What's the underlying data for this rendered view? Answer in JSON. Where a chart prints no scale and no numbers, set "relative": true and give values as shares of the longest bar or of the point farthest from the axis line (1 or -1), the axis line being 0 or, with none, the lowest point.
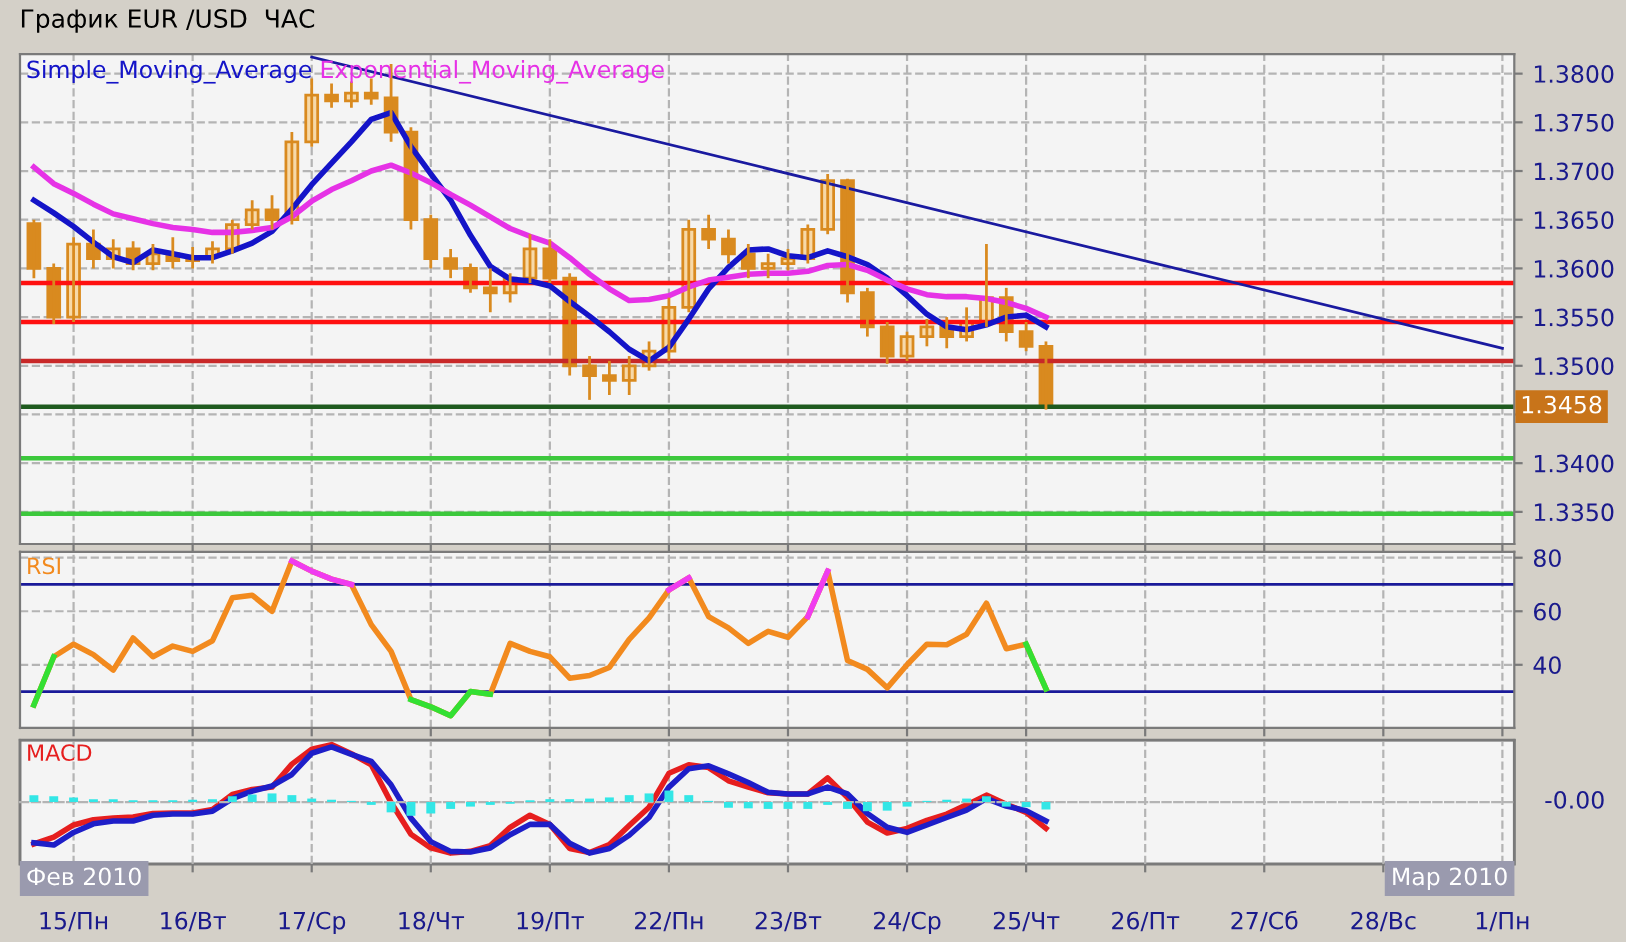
{
  "chart_data": [
    {
      "type": "candlestick",
      "title": "График EUR /USD  ЧАС",
      "color": "#d98a1f",
      "categories": [
        null,
        null,
        "15/Пн",
        null,
        null,
        null,
        null,
        null,
        "16/Вт",
        null,
        null,
        null,
        null,
        null,
        "17/Ср",
        null,
        null,
        null,
        null,
        null,
        "18/Чт",
        null,
        null,
        null,
        null,
        null,
        "19/Пт",
        null,
        null,
        null,
        null,
        null,
        "22/Пн",
        null,
        null,
        null,
        null,
        null,
        "23/Вт",
        null,
        null,
        null,
        null,
        null,
        "24/Ср",
        null,
        null,
        null,
        null,
        null,
        "25/Чт",
        null,
        null,
        null,
        null,
        null,
        "26/Пт",
        null,
        null,
        null,
        null,
        null,
        "27/Сб",
        null,
        null,
        null,
        null,
        null,
        "28/Вс",
        null,
        null,
        null,
        null,
        null,
        "1/Пн"
      ],
      "ohlc": [
        [
          1.3646,
          1.365,
          1.359,
          1.36
        ],
        [
          1.36,
          1.3605,
          1.3543,
          1.355
        ],
        [
          1.355,
          1.3632,
          1.3545,
          1.3625
        ],
        [
          1.3625,
          1.364,
          1.36,
          1.361
        ],
        [
          1.361,
          1.363,
          1.36,
          1.362
        ],
        [
          1.362,
          1.3628,
          1.3598,
          1.3605
        ],
        [
          1.3605,
          1.3625,
          1.3598,
          1.3615
        ],
        [
          1.3615,
          1.3632,
          1.36,
          1.3608
        ],
        [
          1.3608,
          1.3622,
          1.36,
          1.3612
        ],
        [
          1.3612,
          1.3628,
          1.3605,
          1.362
        ],
        [
          1.362,
          1.365,
          1.3615,
          1.3645
        ],
        [
          1.3645,
          1.367,
          1.364,
          1.366
        ],
        [
          1.366,
          1.3675,
          1.364,
          1.365
        ],
        [
          1.365,
          1.374,
          1.3645,
          1.373
        ],
        [
          1.373,
          1.3795,
          1.3725,
          1.3778
        ],
        [
          1.3778,
          1.379,
          1.3765,
          1.3772
        ],
        [
          1.3772,
          1.3792,
          1.3765,
          1.378
        ],
        [
          1.378,
          1.3795,
          1.3768,
          1.3775
        ],
        [
          1.3775,
          1.381,
          1.373,
          1.374
        ],
        [
          1.374,
          1.3745,
          1.364,
          1.365
        ],
        [
          1.365,
          1.3655,
          1.36,
          1.361
        ],
        [
          1.361,
          1.362,
          1.359,
          1.36
        ],
        [
          1.36,
          1.3605,
          1.3575,
          1.358
        ],
        [
          1.358,
          1.36,
          1.3555,
          1.3575
        ],
        [
          1.3575,
          1.3595,
          1.3565,
          1.359
        ],
        [
          1.359,
          1.3635,
          1.3585,
          1.362
        ],
        [
          1.362,
          1.363,
          1.3585,
          1.359
        ],
        [
          1.359,
          1.3595,
          1.349,
          1.35
        ],
        [
          1.35,
          1.351,
          1.3465,
          1.349
        ],
        [
          1.349,
          1.3505,
          1.347,
          1.3485
        ],
        [
          1.3485,
          1.351,
          1.347,
          1.35
        ],
        [
          1.35,
          1.3525,
          1.3495,
          1.3515
        ],
        [
          1.3515,
          1.357,
          1.3505,
          1.356
        ],
        [
          1.356,
          1.365,
          1.3555,
          1.364
        ],
        [
          1.364,
          1.3655,
          1.362,
          1.363
        ],
        [
          1.363,
          1.364,
          1.3605,
          1.3615
        ],
        [
          1.3615,
          1.3625,
          1.359,
          1.36
        ],
        [
          1.36,
          1.3615,
          1.359,
          1.3605
        ],
        [
          1.3605,
          1.362,
          1.3598,
          1.361
        ],
        [
          1.361,
          1.3645,
          1.3605,
          1.364
        ],
        [
          1.364,
          1.3697,
          1.3635,
          1.369
        ],
        [
          1.369,
          1.3692,
          1.3565,
          1.3575
        ],
        [
          1.3575,
          1.358,
          1.353,
          1.354
        ],
        [
          1.354,
          1.3545,
          1.3502,
          1.351
        ],
        [
          1.351,
          1.3535,
          1.3505,
          1.353
        ],
        [
          1.353,
          1.3548,
          1.352,
          1.354
        ],
        [
          1.354,
          1.355,
          1.3518,
          1.353
        ],
        [
          1.353,
          1.356,
          1.3525,
          1.3545
        ],
        [
          1.3545,
          1.3625,
          1.354,
          1.357
        ],
        [
          1.357,
          1.358,
          1.3525,
          1.3535
        ],
        [
          1.3535,
          1.3545,
          1.3515,
          1.352
        ],
        [
          1.352,
          1.3525,
          1.3455,
          1.3458
        ],
        null,
        null,
        null,
        null,
        null,
        null,
        null,
        null,
        null,
        null,
        null,
        null,
        null,
        null,
        null,
        null,
        null,
        null,
        null,
        null,
        null,
        null,
        null
      ],
      "series": [
        {
          "name": "Simple_Moving_Average",
          "type": "line",
          "color": "#1414c8",
          "values": [
            1.367,
            1.3657,
            1.3643,
            1.3627,
            1.3612,
            1.3606,
            1.3619,
            1.3615,
            1.3611,
            1.3611,
            1.3618,
            1.3626,
            1.3638,
            1.3661,
            1.3686,
            1.3708,
            1.373,
            1.3753,
            1.376,
            1.3725,
            1.3697,
            1.367,
            1.3634,
            1.3602,
            1.3589,
            1.3587,
            1.3582,
            1.3566,
            1.3551,
            1.3535,
            1.3517,
            1.3505,
            1.3519,
            1.3548,
            1.3579,
            1.3601,
            1.3619,
            1.362,
            1.3613,
            1.3611,
            1.3618,
            1.3612,
            1.3604,
            1.359,
            1.3572,
            1.3553,
            1.354,
            1.3537,
            1.3542,
            1.355,
            1.3552,
            1.354,
            null,
            null,
            null,
            null,
            null,
            null,
            null,
            null,
            null,
            null,
            null,
            null,
            null,
            null,
            null,
            null,
            null,
            null,
            null,
            null,
            null,
            null,
            null
          ]
        },
        {
          "name": "Exponential_Moving_Average",
          "type": "line",
          "color": "#e632e6",
          "values": [
            1.3704,
            1.3687,
            1.3677,
            1.3666,
            1.3656,
            1.3651,
            1.3646,
            1.3642,
            1.364,
            1.3637,
            1.3637,
            1.3639,
            1.3642,
            1.3653,
            1.3669,
            1.3681,
            1.369,
            1.37,
            1.3706,
            1.3698,
            1.3688,
            1.3676,
            1.3665,
            1.3653,
            1.3641,
            1.3633,
            1.3626,
            1.3611,
            1.3594,
            1.3579,
            1.3567,
            1.3568,
            1.3572,
            1.3581,
            1.3588,
            1.3591,
            1.3594,
            1.3595,
            1.3595,
            1.3597,
            1.3603,
            1.3604,
            1.3598,
            1.3588,
            1.3579,
            1.3573,
            1.3571,
            1.3571,
            1.3569,
            1.3565,
            1.3559,
            1.355,
            null,
            null,
            null,
            null,
            null,
            null,
            null,
            null,
            null,
            null,
            null,
            null,
            null,
            null,
            null,
            null,
            null,
            null,
            null,
            null,
            null,
            null,
            null
          ]
        },
        {
          "type": "line",
          "color": "#1a1aa0",
          "x": [
            "17/Ср",
            "1/Пн"
          ],
          "values": [
            1.3817,
            1.3518
          ]
        }
      ],
      "ylim": [
        1.3317,
        1.382
      ],
      "yticks": [
        {
          "value": 1.335,
          "label": "1.3350"
        },
        {
          "value": 1.34,
          "label": "1.3400"
        },
        {
          "value": 1.345,
          "label": null
        },
        {
          "value": 1.35,
          "label": "1.3500"
        },
        {
          "value": 1.355,
          "label": "1.3550"
        },
        {
          "value": 1.36,
          "label": "1.3600"
        },
        {
          "value": 1.365,
          "label": "1.3650"
        },
        {
          "value": 1.37,
          "label": "1.3700"
        },
        {
          "value": 1.375,
          "label": "1.3750"
        },
        {
          "value": 1.38,
          "label": "1.3800"
        }
      ],
      "ref_lines": [
        {
          "axis": "y",
          "value": 1.3585,
          "color": "#ff1010"
        },
        {
          "axis": "y",
          "value": 1.3545,
          "color": "#ff1010"
        },
        {
          "axis": "y",
          "value": 1.3505,
          "color": "#c82828"
        },
        {
          "axis": "y",
          "value": 1.3458,
          "label": "1.3458",
          "color": "#1e5a1e"
        },
        {
          "axis": "y",
          "value": 1.3405,
          "color": "#3cc83c"
        },
        {
          "axis": "y",
          "value": 1.3348,
          "color": "#3cc83c"
        }
      ],
      "grid": true,
      "legend": "top left",
      "tick_labels": "y"
    },
    {
      "type": "line",
      "title": "RSI",
      "categories": [
        null,
        null,
        "15/Пн",
        null,
        null,
        null,
        null,
        null,
        "16/Вт",
        null,
        null,
        null,
        null,
        null,
        "17/Ср",
        null,
        null,
        null,
        null,
        null,
        "18/Чт",
        null,
        null,
        null,
        null,
        null,
        "19/Пт",
        null,
        null,
        null,
        null,
        null,
        "22/Пн",
        null,
        null,
        null,
        null,
        null,
        "23/Вт",
        null,
        null,
        null,
        null,
        null,
        "24/Ср",
        null,
        null,
        null,
        null,
        null,
        "25/Чт",
        null,
        null,
        null,
        null,
        null,
        "26/Пт",
        null,
        null,
        null,
        null,
        null,
        "27/Сб",
        null,
        null,
        null,
        null,
        null,
        "28/Вс",
        null,
        null,
        null,
        null,
        null,
        "1/Пн"
      ],
      "series": [
        {
          "color": "#f28a1e",
          "values": [
            25,
            43,
            47.7,
            43.8,
            38,
            50,
            43,
            47,
            45,
            49,
            65,
            66,
            60,
            78.8,
            75,
            72,
            70,
            55,
            45,
            27,
            24.3,
            21,
            30,
            29,
            48,
            45,
            43,
            35,
            36,
            39,
            49.5,
            57.5,
            68,
            72.5,
            58,
            53.8,
            48,
            52.5,
            50.3,
            58,
            75,
            41.6,
            38.3,
            31.4,
            40,
            47.7,
            47.5,
            51.4,
            63,
            46,
            47.7,
            31,
            null,
            null,
            null,
            null,
            null,
            null,
            null,
            null,
            null,
            null,
            null,
            null,
            null,
            null,
            null,
            null,
            null,
            null,
            null,
            null,
            null,
            null,
            null
          ]
        },
        {
          "color": "#33e033",
          "values": [
            25,
            43,
            null,
            null,
            null,
            null,
            null,
            null,
            null,
            null,
            null,
            null,
            null,
            null,
            null,
            null,
            null,
            null,
            null,
            27,
            24.3,
            21,
            30,
            29,
            null,
            null,
            null,
            null,
            null,
            null,
            null,
            null,
            null,
            null,
            null,
            null,
            null,
            null,
            null,
            null,
            null,
            null,
            null,
            null,
            null,
            null,
            null,
            null,
            null,
            null,
            47.7,
            31,
            null,
            null,
            null,
            null,
            null,
            null,
            null,
            null,
            null,
            null,
            null,
            null,
            null,
            null,
            null,
            null,
            null,
            null,
            null,
            null,
            null,
            null,
            null
          ]
        },
        {
          "color": "#f03cf0",
          "values": [
            null,
            null,
            null,
            null,
            null,
            null,
            null,
            null,
            null,
            null,
            null,
            null,
            null,
            78.8,
            75,
            72,
            70,
            null,
            null,
            null,
            null,
            null,
            null,
            null,
            null,
            null,
            null,
            null,
            null,
            null,
            null,
            null,
            68,
            72.5,
            null,
            null,
            null,
            null,
            null,
            58,
            75,
            null,
            null,
            null,
            null,
            null,
            null,
            null,
            null,
            null,
            null,
            null,
            null,
            null,
            null,
            null,
            null,
            null,
            null,
            null,
            null,
            null,
            null,
            null,
            null,
            null,
            null,
            null,
            null,
            null,
            null,
            null,
            null,
            null,
            null
          ]
        }
      ],
      "ylim": [
        16.4,
        82.2
      ],
      "yticks": [
        40,
        60,
        80
      ],
      "ref_lines": [
        {
          "axis": "y",
          "value": 70,
          "color": "#1a1a99"
        },
        {
          "axis": "y",
          "value": 30,
          "color": "#1a1a99"
        }
      ],
      "grid": true,
      "tick_labels": "y"
    },
    {
      "type": "line",
      "title": "MACD",
      "relative": true,
      "categories": [
        null,
        null,
        "15/Пн",
        null,
        null,
        null,
        null,
        null,
        "16/Вт",
        null,
        null,
        null,
        null,
        null,
        "17/Ср",
        null,
        null,
        null,
        null,
        null,
        "18/Чт",
        null,
        null,
        null,
        null,
        null,
        "19/Пт",
        null,
        null,
        null,
        null,
        null,
        "22/Пн",
        null,
        null,
        null,
        null,
        null,
        "23/Вт",
        null,
        null,
        null,
        null,
        null,
        "24/Ср",
        null,
        null,
        null,
        null,
        null,
        "25/Чт",
        null,
        null,
        null,
        null,
        null,
        "26/Пт",
        null,
        null,
        null,
        null,
        null,
        "27/Сб",
        null,
        null,
        null,
        null,
        null,
        "28/Вс",
        null,
        null,
        null,
        null,
        null,
        "1/Пн"
      ],
      "series": [
        {
          "type": "bar",
          "color": "#33e6e6",
          "values": [
            0.12,
            0.1,
            0.08,
            0.05,
            0.05,
            0.03,
            0.03,
            0.03,
            0.04,
            0.05,
            0.1,
            0.13,
            0.15,
            0.12,
            0.06,
            0.04,
            0.02,
            -0.05,
            -0.18,
            -0.24,
            -0.2,
            -0.12,
            -0.08,
            -0.05,
            -0.03,
            0.03,
            0.05,
            0.05,
            0.06,
            0.08,
            0.12,
            0.15,
            0.2,
            0.12,
            0.02,
            -0.1,
            -0.11,
            -0.12,
            -0.12,
            -0.12,
            -0.05,
            -0.12,
            -0.16,
            -0.15,
            -0.08,
            0.02,
            0.04,
            0.06,
            0.1,
            -0.08,
            -0.09,
            -0.13,
            null,
            null,
            null,
            null,
            null,
            null,
            null,
            null,
            null,
            null,
            null,
            null,
            null,
            null,
            null,
            null,
            null,
            null,
            null,
            null,
            null,
            null,
            null
          ]
        },
        {
          "type": "line",
          "color": "#e61e1e",
          "values": [
            -0.73,
            -0.61,
            -0.4,
            -0.31,
            -0.28,
            -0.26,
            -0.2,
            -0.19,
            -0.19,
            -0.13,
            0.13,
            0.22,
            0.26,
            0.66,
            0.92,
            1.0,
            0.84,
            0.65,
            -0.01,
            -0.56,
            -0.8,
            -0.89,
            -0.86,
            -0.76,
            -0.44,
            -0.23,
            -0.39,
            -0.81,
            -0.88,
            -0.74,
            -0.41,
            -0.09,
            0.5,
            0.65,
            0.6,
            0.37,
            0.26,
            0.16,
            0.14,
            0.14,
            0.42,
            0.08,
            -0.35,
            -0.54,
            -0.46,
            -0.32,
            -0.21,
            -0.05,
            0.12,
            -0.04,
            -0.18,
            -0.46,
            null,
            null,
            null,
            null,
            null,
            null,
            null,
            null,
            null,
            null,
            null,
            null,
            null,
            null,
            null,
            null,
            null,
            null,
            null,
            null,
            null,
            null,
            null
          ]
        },
        {
          "type": "line",
          "color": "#1e1ec8",
          "values": [
            -0.71,
            -0.75,
            -0.53,
            -0.38,
            -0.33,
            -0.33,
            -0.23,
            -0.21,
            -0.21,
            -0.16,
            0.06,
            0.19,
            0.28,
            0.48,
            0.85,
            0.96,
            0.83,
            0.71,
            0.3,
            -0.28,
            -0.69,
            -0.86,
            -0.87,
            -0.8,
            -0.57,
            -0.39,
            -0.39,
            -0.72,
            -0.89,
            -0.81,
            -0.58,
            -0.27,
            0.26,
            0.58,
            0.63,
            0.49,
            0.34,
            0.17,
            0.14,
            0.14,
            0.26,
            0.14,
            -0.2,
            -0.44,
            -0.53,
            -0.4,
            -0.27,
            -0.14,
            0.06,
            -0.07,
            -0.15,
            -0.33,
            null,
            null,
            null,
            null,
            null,
            null,
            null,
            null,
            null,
            null,
            null,
            null,
            null,
            null,
            null,
            null,
            null,
            null,
            null,
            null,
            null,
            null,
            null
          ]
        }
      ],
      "annotations": [
        "Фев 2010",
        "Мар 2010",
        "-0.00"
      ],
      "grid": "x",
      "tick_labels": "x"
    }
  ]
}
